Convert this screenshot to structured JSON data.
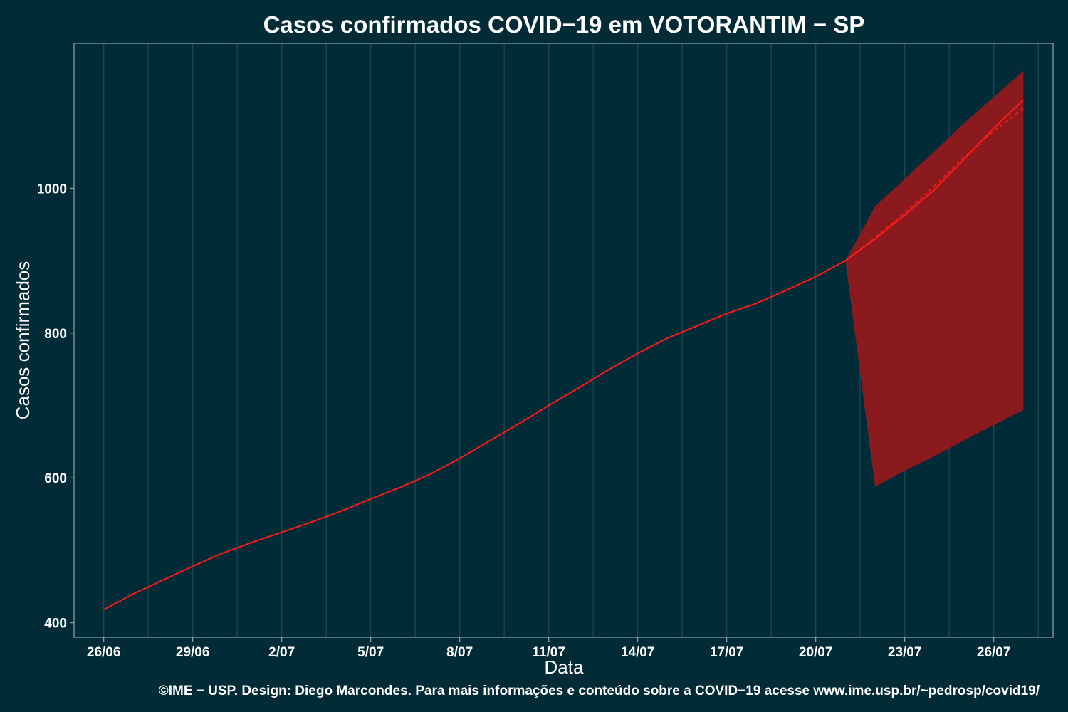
{
  "chart_data": {
    "type": "line",
    "title": "Casos confirmados COVID−19 em VOTORANTIM − SP",
    "xlabel": "Data",
    "ylabel": "Casos confirmados",
    "caption": "©IME − USP. Design: Diego Marcondes. Para mais informações e conteúdo sobre a COVID−19 acesse www.ime.usp.br/~pedrosp/covid19/",
    "x_tick_labels": [
      "26/06",
      "29/06",
      "2/07",
      "5/07",
      "8/07",
      "11/07",
      "14/07",
      "17/07",
      "20/07",
      "23/07",
      "26/07"
    ],
    "y_ticks": [
      400,
      600,
      800,
      1000
    ],
    "ylim": [
      380,
      1200
    ],
    "xlim": [
      "2020-06-25",
      "2020-07-28"
    ],
    "grid": true,
    "colors": {
      "background": "#022b38",
      "line": "#ff1a1a",
      "band": "#8b1a1e",
      "grid": "#1c4550",
      "border": "#8fa5a9"
    },
    "observed": {
      "x": [
        "2020-06-26",
        "2020-06-27",
        "2020-06-28",
        "2020-06-29",
        "2020-06-30",
        "2020-07-01",
        "2020-07-02",
        "2020-07-03",
        "2020-07-04",
        "2020-07-05",
        "2020-07-06",
        "2020-07-07",
        "2020-07-08",
        "2020-07-09",
        "2020-07-10",
        "2020-07-11",
        "2020-07-12",
        "2020-07-13",
        "2020-07-14",
        "2020-07-15",
        "2020-07-16",
        "2020-07-17",
        "2020-07-18",
        "2020-07-19",
        "2020-07-20",
        "2020-07-21"
      ],
      "y": [
        418,
        440,
        459,
        478,
        496,
        511,
        525,
        539,
        554,
        571,
        587,
        605,
        627,
        651,
        675,
        700,
        724,
        749,
        772,
        793,
        810,
        827,
        841,
        859,
        878,
        900
      ]
    },
    "forecast": {
      "x": [
        "2020-07-21",
        "2020-07-22",
        "2020-07-23",
        "2020-07-24",
        "2020-07-25",
        "2020-07-26",
        "2020-07-27"
      ],
      "y": [
        900,
        930,
        963,
        998,
        1040,
        1083,
        1122
      ],
      "y_dashed": [
        900,
        932,
        966,
        1003,
        1043,
        1079,
        1110
      ],
      "lower": [
        900,
        588,
        610,
        630,
        652,
        673,
        694
      ],
      "upper": [
        900,
        975,
        1013,
        1051,
        1090,
        1126,
        1162
      ]
    }
  }
}
